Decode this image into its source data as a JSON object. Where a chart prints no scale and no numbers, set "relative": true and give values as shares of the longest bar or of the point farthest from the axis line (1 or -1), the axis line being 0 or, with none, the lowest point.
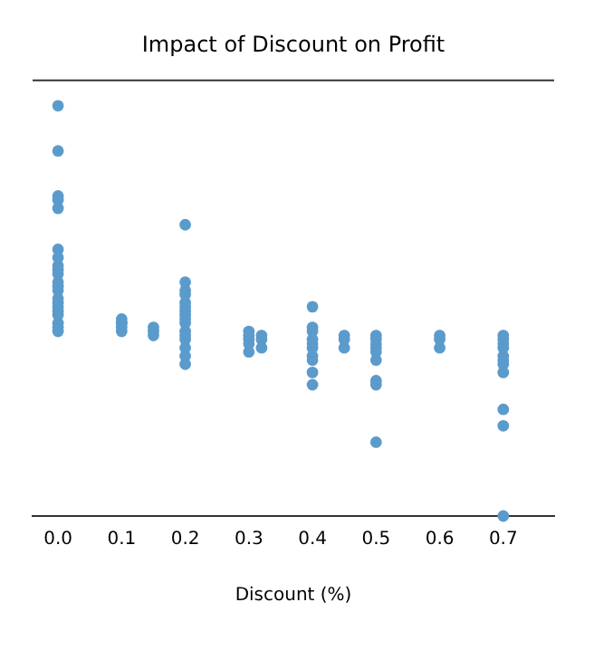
{
  "chart_data": {
    "type": "scatter",
    "title": "Impact of Discount on Profit",
    "xlabel": "Discount (%)",
    "relative": true,
    "xlim": [
      -0.04,
      0.78
    ],
    "xticks": [
      {
        "value": 0,
        "label": "0.0"
      },
      0.1,
      0.2,
      0.3,
      0.4,
      0.5,
      0.6,
      0.7
    ],
    "grid": false,
    "legend": false,
    "marker": "circle",
    "series": [
      {
        "color": "#5b9bcc",
        "x": [
          0,
          0,
          0,
          0,
          0,
          0,
          0,
          0,
          0,
          0,
          0,
          0,
          0,
          0,
          0,
          0,
          0,
          0,
          0,
          0,
          0,
          0.1,
          0.1,
          0.1,
          0.1,
          0.1,
          0.15,
          0.15,
          0.15,
          0.2,
          0.2,
          0.2,
          0.2,
          0.2,
          0.2,
          0.2,
          0.2,
          0.2,
          0.2,
          0.2,
          0.2,
          0.2,
          0.2,
          0.2,
          0.2,
          0.3,
          0.3,
          0.3,
          0.3,
          0.3,
          0.32,
          0.32,
          0.32,
          0.4,
          0.4,
          0.4,
          0.4,
          0.4,
          0.4,
          0.4,
          0.4,
          0.4,
          0.4,
          0.45,
          0.45,
          0.45,
          0.5,
          0.5,
          0.5,
          0.5,
          0.5,
          0.5,
          0.5,
          0.5,
          0.5,
          0.6,
          0.6,
          0.6,
          0.7,
          0.7,
          0.7,
          0.7,
          0.7,
          0.7,
          0.7,
          0.7,
          0.7,
          0.7,
          0.7
        ],
        "values": [
          1,
          0.89,
          0.78,
          0.77,
          0.75,
          0.65,
          0.63,
          0.61,
          0.6,
          0.59,
          0.57,
          0.56,
          0.55,
          0.53,
          0.52,
          0.51,
          0.5,
          0.49,
          0.47,
          0.46,
          0.45,
          0.48,
          0.47,
          0.47,
          0.46,
          0.45,
          0.46,
          0.45,
          0.44,
          0.71,
          0.57,
          0.55,
          0.54,
          0.52,
          0.51,
          0.5,
          0.49,
          0.48,
          0.47,
          0.45,
          0.44,
          0.43,
          0.41,
          0.39,
          0.37,
          0.45,
          0.44,
          0.43,
          0.42,
          0.4,
          0.44,
          0.43,
          0.41,
          0.51,
          0.46,
          0.45,
          0.43,
          0.42,
          0.41,
          0.39,
          0.38,
          0.35,
          0.32,
          0.44,
          0.43,
          0.41,
          0.44,
          0.43,
          0.42,
          0.41,
          0.4,
          0.38,
          0.33,
          0.32,
          0.18,
          0.44,
          0.43,
          0.41,
          0.44,
          0.43,
          0.42,
          0.41,
          0.39,
          0.38,
          0.37,
          0.35,
          0.26,
          0.22,
          0
        ]
      }
    ]
  }
}
